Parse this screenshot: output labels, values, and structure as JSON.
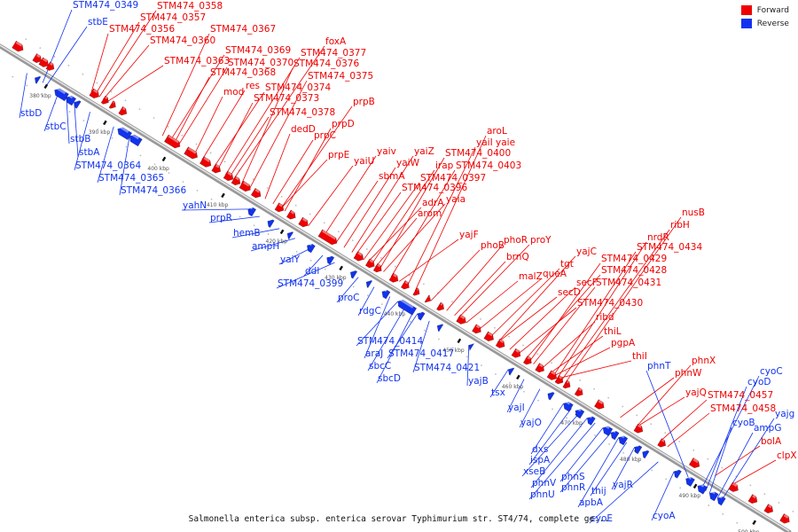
{
  "colors": {
    "forward": "#ee0000",
    "reverse": "#1133ee",
    "backbone": "#777777"
  },
  "legend": [
    {
      "label": "Forward",
      "color": "#ee0000"
    },
    {
      "label": "Reverse",
      "color": "#1133ee"
    }
  ],
  "caption": "Salmonella enterica subsp. enterica serovar Typhimurium str. ST4/74, complete ge...",
  "ticks": [
    "380 kbp",
    "390 kbp",
    "400 kbp",
    "410 kbp",
    "420 kbp",
    "430 kbp",
    "440 kbp",
    "450 kbp",
    "460 kbp",
    "470 kbp",
    "480 kbp",
    "490 kbp",
    "500 kbp"
  ],
  "forward_labels": [
    "STM474_0358",
    "STM474_0357",
    "STM474_0356",
    "STM474_0360",
    "STM474_0367",
    "STM474_0363",
    "foxA",
    "STM474_0377",
    "STM474_0369",
    "STM474_0370",
    "STM474_0376",
    "STM474_0368",
    "STM474_0375",
    "mod",
    "res",
    "STM474_0374",
    "STM474_0373",
    "STM474_0378",
    "prpB",
    "prpD",
    "dedD",
    "prpC",
    "prpE",
    "yaiU",
    "aroL",
    "yaiI yaie",
    "yaiv",
    "yaiZ",
    "yaiW",
    "STM474_0400",
    "irap",
    "STM474_0403",
    "sbmA",
    "STM474_0397",
    "STM474_0396",
    "adrA",
    "yaia",
    "arom",
    "yajF",
    "phoB",
    "phoR",
    "proY",
    "brnQ",
    "yajC",
    "tgt",
    "queA",
    "malZ",
    "nusB",
    "ribH",
    "nrdR",
    "STM474_0434",
    "STM474_0429",
    "STM474_0428",
    "secF",
    "STM474_0431",
    "secD",
    "STM474_0430",
    "ribd",
    "thiL",
    "pgpA",
    "thiI",
    "phnX",
    "phnW",
    "yajQ",
    "STM474_0457",
    "STM474_0458",
    "bolA",
    "clpX"
  ],
  "reverse_labels": [
    "STM474_0349",
    "stbE",
    "stbD",
    "stbC",
    "stbB",
    "stbA",
    "STM474_0364",
    "STM474_0365",
    "STM474_0366",
    "yahN",
    "prpR",
    "hemB",
    "ampH",
    "yaiY",
    "ddl",
    "STM474_0399",
    "proC",
    "rdgC",
    "STM474_0414",
    "araJ",
    "STM474_0417",
    "sbcC",
    "STM474_0421",
    "sbcD",
    "yajB",
    "tsx",
    "yajI",
    "yajO",
    "dxs",
    "ispA",
    "xseB",
    "phnV",
    "phnS",
    "phnU",
    "phnR",
    "thij",
    "yajR",
    "apbA",
    "cyoE",
    "cyoA",
    "phnT",
    "cyoC",
    "cyoD",
    "cyoB",
    "ampG",
    "yajg"
  ]
}
